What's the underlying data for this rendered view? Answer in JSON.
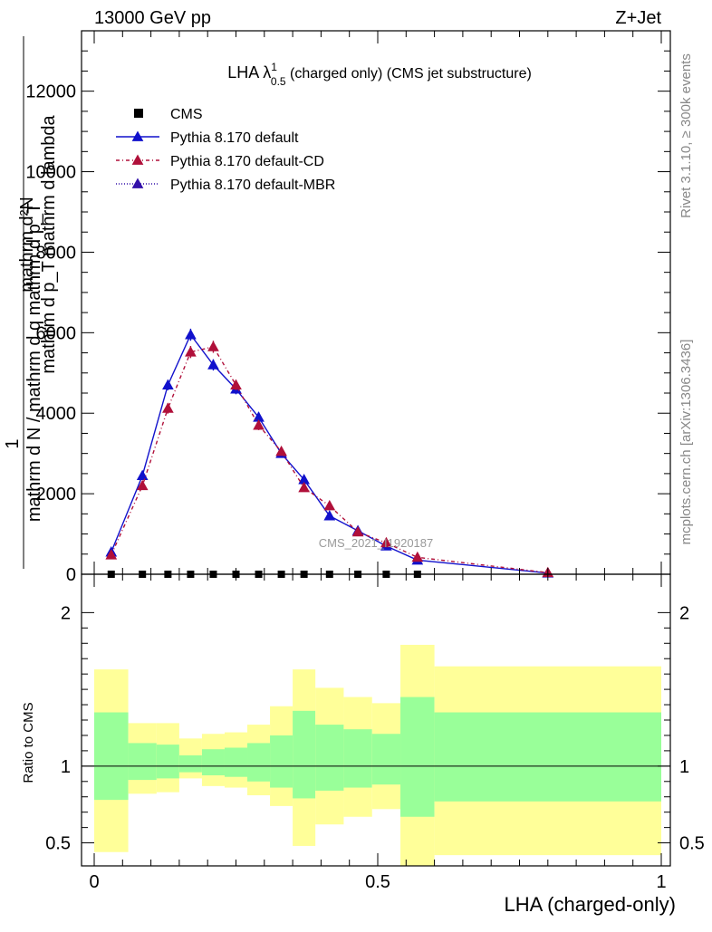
{
  "header": {
    "left": "13000 GeV pp",
    "right": "Z+Jet"
  },
  "side_labels": {
    "rivet": "Rivet 3.1.10, ≥ 300k events",
    "mcplots": "mcplots.cern.ch [arXiv:1306.3436]"
  },
  "chart_data": [
    {
      "type": "line",
      "panel": "main",
      "title": "LHA λ¹₀.₅ (charged only) (CMS jet substructure)",
      "title_main": "LHA λ",
      "title_sup": "1",
      "title_sub": "0.5",
      "title_rest": " (charged only) (CMS jet substructure)",
      "ylabel_num": "mathrm d²N",
      "ylabel_num2": "mathrm d p_T mathrm d lambda",
      "ylabel_one": "1",
      "ylabel_den": "mathrm d N / mathrm d q mathrm d p_T",
      "xlim": [
        0,
        1
      ],
      "ylim": [
        0,
        13500
      ],
      "yticks": [
        0,
        2000,
        4000,
        6000,
        8000,
        10000,
        12000
      ],
      "grid": false,
      "legend_position": "top-left",
      "watermark": "CMS_2021_I1920187",
      "series": [
        {
          "name": "CMS",
          "color": "#000000",
          "marker": "square",
          "x": [
            0.03,
            0.085,
            0.13,
            0.17,
            0.21,
            0.25,
            0.29,
            0.33,
            0.37,
            0.415,
            0.465,
            0.515,
            0.57
          ],
          "y": [
            0,
            0,
            0,
            0,
            0,
            0,
            0,
            0,
            0,
            0,
            0,
            0,
            0
          ]
        },
        {
          "name": "Pythia 8.170 default",
          "color": "#1111cc",
          "marker": "triangle",
          "dash": "",
          "x": [
            0.03,
            0.085,
            0.13,
            0.17,
            0.21,
            0.25,
            0.29,
            0.33,
            0.37,
            0.415,
            0.465,
            0.515,
            0.57,
            0.8
          ],
          "y": [
            550,
            2450,
            4700,
            5950,
            5200,
            4600,
            3900,
            3000,
            2350,
            1450,
            1080,
            700,
            350,
            30
          ],
          "err": [
            70,
            90,
            130,
            150,
            140,
            130,
            120,
            100,
            90,
            70,
            60,
            50,
            40,
            10
          ]
        },
        {
          "name": "Pythia 8.170 default-CD",
          "color": "#b0103a",
          "marker": "triangle",
          "dash": "4,3,1,3",
          "x": [
            0.03,
            0.085,
            0.13,
            0.17,
            0.21,
            0.25,
            0.29,
            0.33,
            0.37,
            0.415,
            0.465,
            0.515,
            0.57,
            0.8
          ],
          "y": [
            480,
            2200,
            4120,
            5520,
            5650,
            4700,
            3700,
            3050,
            2150,
            1700,
            1050,
            780,
            420,
            40
          ],
          "err": [
            70,
            90,
            130,
            150,
            150,
            130,
            120,
            100,
            90,
            80,
            60,
            50,
            40,
            10
          ]
        },
        {
          "name": "Pythia 8.170 default-MBR",
          "color": "#3311aa",
          "marker": "triangle",
          "dash": "1,2",
          "x": [],
          "y": []
        }
      ]
    },
    {
      "type": "area",
      "panel": "ratio",
      "ylabel": "Ratio to CMS",
      "xlabel": "LHA (charged-only)",
      "xlim": [
        0,
        1
      ],
      "ylim": [
        0.35,
        2.25
      ],
      "yticks": [
        0.5,
        1,
        2
      ],
      "xticks": [
        0,
        0.5,
        1
      ],
      "reference_line": 1,
      "bins": [
        {
          "x0": 0.0,
          "x1": 0.06,
          "y_lo": 0.44,
          "y_hi": 1.63,
          "g_lo": 0.78,
          "g_hi": 1.35
        },
        {
          "x0": 0.06,
          "x1": 0.11,
          "y_lo": 0.82,
          "y_hi": 1.28,
          "g_lo": 0.91,
          "g_hi": 1.15
        },
        {
          "x0": 0.11,
          "x1": 0.15,
          "y_lo": 0.83,
          "y_hi": 1.28,
          "g_lo": 0.92,
          "g_hi": 1.14
        },
        {
          "x0": 0.15,
          "x1": 0.19,
          "y_lo": 0.92,
          "y_hi": 1.18,
          "g_lo": 0.96,
          "g_hi": 1.07
        },
        {
          "x0": 0.19,
          "x1": 0.23,
          "y_lo": 0.87,
          "y_hi": 1.21,
          "g_lo": 0.94,
          "g_hi": 1.11
        },
        {
          "x0": 0.23,
          "x1": 0.27,
          "y_lo": 0.86,
          "y_hi": 1.22,
          "g_lo": 0.93,
          "g_hi": 1.12
        },
        {
          "x0": 0.27,
          "x1": 0.31,
          "y_lo": 0.81,
          "y_hi": 1.27,
          "g_lo": 0.9,
          "g_hi": 1.15
        },
        {
          "x0": 0.31,
          "x1": 0.35,
          "y_lo": 0.74,
          "y_hi": 1.39,
          "g_lo": 0.86,
          "g_hi": 1.2
        },
        {
          "x0": 0.35,
          "x1": 0.39,
          "y_lo": 0.48,
          "y_hi": 1.63,
          "g_lo": 0.79,
          "g_hi": 1.36
        },
        {
          "x0": 0.39,
          "x1": 0.44,
          "y_lo": 0.62,
          "y_hi": 1.51,
          "g_lo": 0.84,
          "g_hi": 1.27
        },
        {
          "x0": 0.44,
          "x1": 0.49,
          "y_lo": 0.67,
          "y_hi": 1.45,
          "g_lo": 0.86,
          "g_hi": 1.24
        },
        {
          "x0": 0.49,
          "x1": 0.54,
          "y_lo": 0.72,
          "y_hi": 1.41,
          "g_lo": 0.88,
          "g_hi": 1.21
        },
        {
          "x0": 0.54,
          "x1": 0.6,
          "y_lo": 0.35,
          "y_hi": 1.79,
          "g_lo": 0.67,
          "g_hi": 1.45
        },
        {
          "x0": 0.6,
          "x1": 1.0,
          "y_lo": 0.42,
          "y_hi": 1.65,
          "g_lo": 0.77,
          "g_hi": 1.35
        }
      ],
      "colors": {
        "yellow": "#ffff99",
        "green": "#99ff99"
      }
    }
  ]
}
